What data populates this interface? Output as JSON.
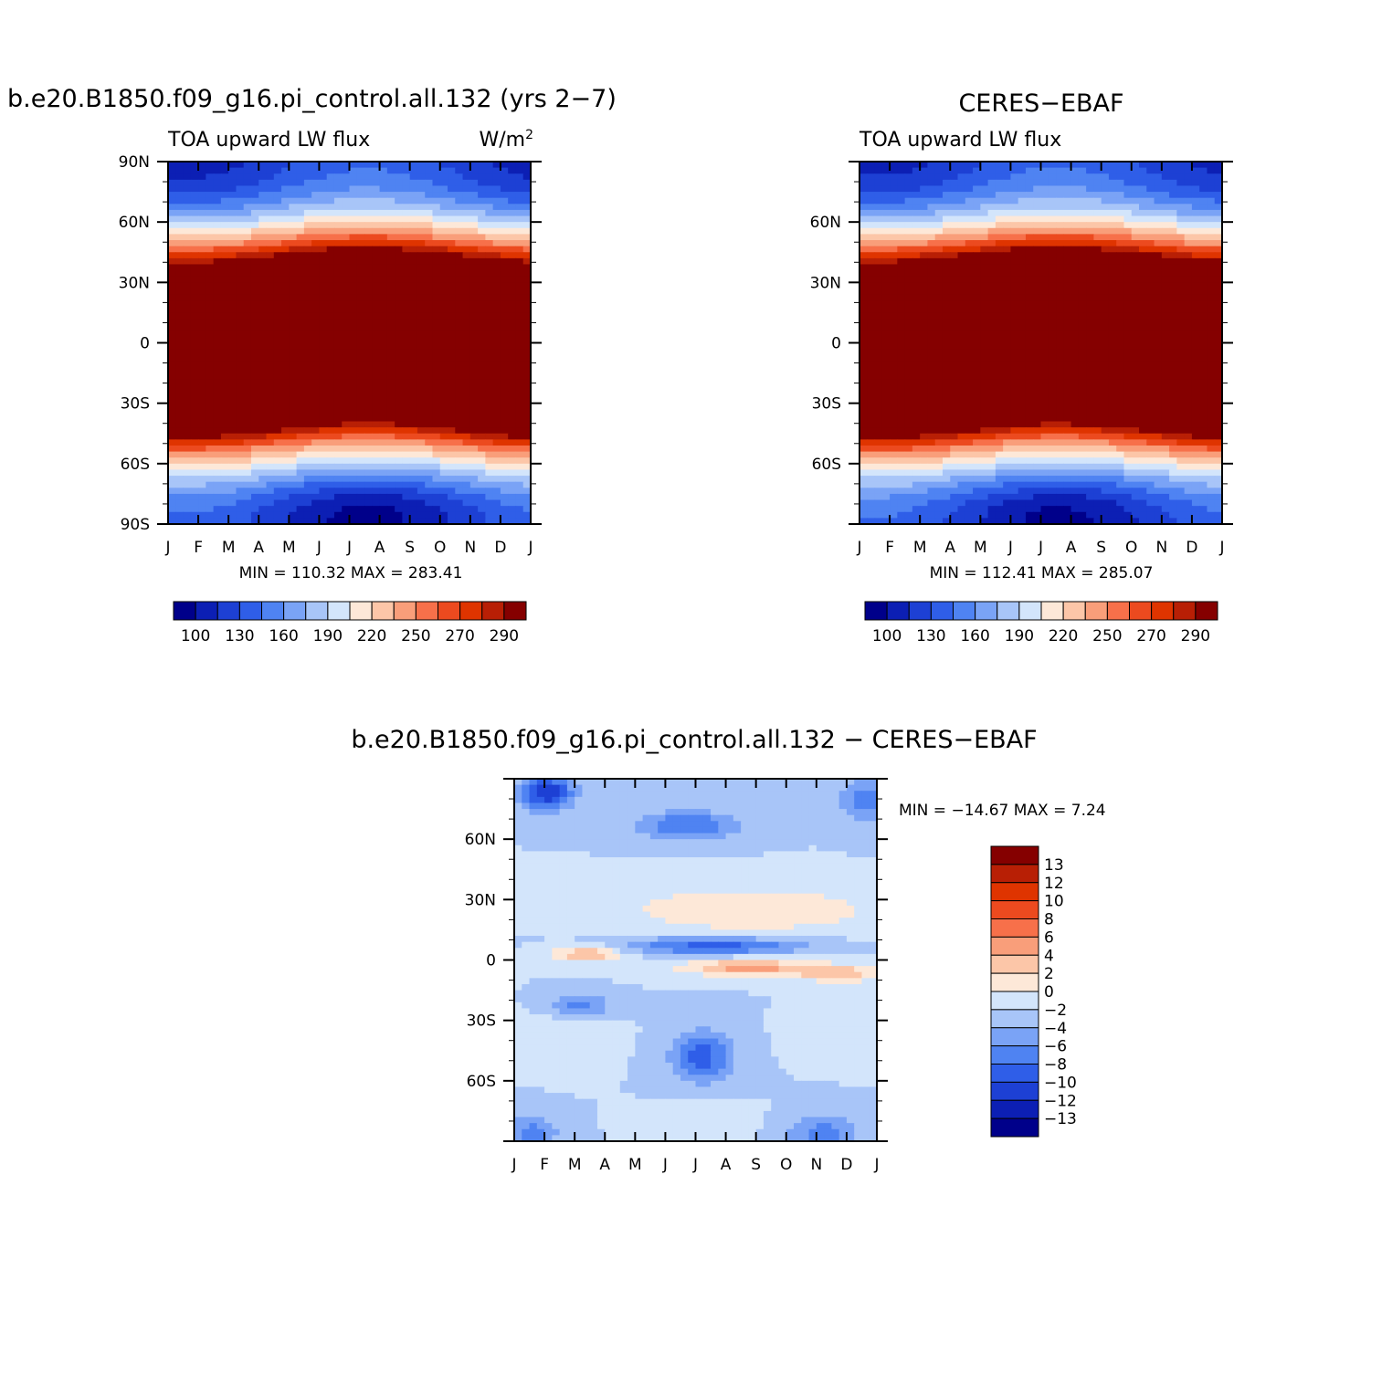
{
  "palette": [
    "#00008a",
    "#0c1fb4",
    "#1d40d4",
    "#2f5ee8",
    "#4f83f2",
    "#7aa3f6",
    "#a8c5f8",
    "#d3e5fb",
    "#fde8d8",
    "#fcc6a8",
    "#f99e7a",
    "#f7704a",
    "#ec4a1f",
    "#df3400",
    "#b81f05",
    "#850000"
  ],
  "chart_data": [
    {
      "id": "model",
      "type": "heatmap",
      "title": "b.e20.B1850.f09_g16.pi_control.all.132 (yrs 2−7)",
      "subtitle": "TOA upward LW flux",
      "units": "W/m²",
      "xlabel": "",
      "ylabel": "",
      "x_ticks": [
        "J",
        "F",
        "M",
        "A",
        "M",
        "J",
        "J",
        "A",
        "S",
        "O",
        "N",
        "D",
        "J"
      ],
      "y_ticks": [
        "90N",
        "60N",
        "30N",
        "0",
        "30S",
        "60S",
        "90S"
      ],
      "y_range_deg": [
        -90,
        90
      ],
      "stats": "MIN = 110.32  MAX = 283.41",
      "min": 110.32,
      "max": 283.41,
      "colorbar_orientation": "horizontal",
      "colorbar_labels": [
        "100",
        "130",
        "160",
        "190",
        "220",
        "250",
        "270",
        "290"
      ],
      "colorbar_levels": [
        100,
        115,
        130,
        145,
        160,
        175,
        190,
        205,
        220,
        235,
        250,
        260,
        270,
        280,
        290
      ],
      "feature_description": "seasonal zonal-mean LW flux; maxima in subtropics (~15-25N/S), minima near poles"
    },
    {
      "id": "obs",
      "type": "heatmap",
      "title": "CERES−EBAF",
      "subtitle": "TOA upward LW flux",
      "x_ticks": [
        "J",
        "F",
        "M",
        "A",
        "M",
        "J",
        "J",
        "A",
        "S",
        "O",
        "N",
        "D",
        "J"
      ],
      "y_ticks": [
        "",
        "60N",
        "30N",
        "0",
        "30S",
        "60S",
        ""
      ],
      "y_range_deg": [
        -90,
        90
      ],
      "stats": "MIN = 112.41  MAX = 285.07",
      "min": 112.41,
      "max": 285.07,
      "colorbar_orientation": "horizontal",
      "colorbar_labels": [
        "100",
        "130",
        "160",
        "190",
        "220",
        "250",
        "270",
        "290"
      ],
      "colorbar_levels": [
        100,
        115,
        130,
        145,
        160,
        175,
        190,
        205,
        220,
        235,
        250,
        260,
        270,
        280,
        290
      ]
    },
    {
      "id": "diff",
      "type": "heatmap",
      "title": "b.e20.B1850.f09_g16.pi_control.all.132  −  CERES−EBAF",
      "x_ticks": [
        "J",
        "F",
        "M",
        "A",
        "M",
        "J",
        "J",
        "A",
        "S",
        "O",
        "N",
        "D",
        "J"
      ],
      "y_ticks": [
        "",
        "60N",
        "30N",
        "0",
        "30S",
        "60S",
        ""
      ],
      "y_range_deg": [
        -90,
        90
      ],
      "stats": "MIN = −14.67  MAX =    7.24",
      "min": -14.67,
      "max": 7.24,
      "colorbar_orientation": "vertical",
      "colorbar_labels": [
        "13",
        "12",
        "10",
        "8",
        "6",
        "4",
        "2",
        "0",
        "−2",
        "−4",
        "−6",
        "−8",
        "−10",
        "−12",
        "−13"
      ],
      "colorbar_levels": [
        13,
        12,
        10,
        8,
        6,
        4,
        2,
        0,
        -2,
        -4,
        -6,
        -8,
        -10,
        -12,
        -13
      ]
    }
  ]
}
